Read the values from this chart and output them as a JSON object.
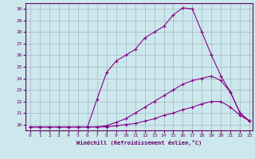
{
  "xlabel": "Windchill (Refroidissement éolien,°C)",
  "background_color": "#cce8ec",
  "line_color": "#880088",
  "grid_color": "#99aabb",
  "xlim": [
    -0.5,
    23.3
  ],
  "ylim": [
    19.5,
    30.5
  ],
  "yticks": [
    20,
    21,
    22,
    23,
    24,
    25,
    26,
    27,
    28,
    29,
    30
  ],
  "xticks": [
    0,
    1,
    2,
    3,
    4,
    5,
    6,
    7,
    8,
    9,
    10,
    11,
    12,
    13,
    14,
    15,
    16,
    17,
    18,
    19,
    20,
    21,
    22,
    23
  ],
  "line1_x": [
    0,
    1,
    2,
    3,
    4,
    5,
    6,
    7,
    8,
    9,
    10,
    11,
    12,
    13,
    14,
    15,
    16,
    17,
    18,
    19,
    20,
    21,
    22,
    23
  ],
  "line1_y": [
    19.8,
    19.8,
    19.8,
    19.8,
    19.8,
    19.8,
    19.8,
    19.8,
    19.8,
    19.9,
    20.0,
    20.1,
    20.3,
    20.5,
    20.8,
    21.0,
    21.3,
    21.5,
    21.8,
    22.0,
    22.0,
    21.5,
    20.8,
    20.3
  ],
  "line2_x": [
    0,
    1,
    2,
    3,
    4,
    5,
    6,
    7,
    8,
    9,
    10,
    11,
    12,
    13,
    14,
    15,
    16,
    17,
    18,
    19,
    20,
    21,
    22,
    23
  ],
  "line2_y": [
    19.8,
    19.8,
    19.8,
    19.8,
    19.8,
    19.8,
    19.8,
    19.8,
    19.9,
    20.2,
    20.5,
    21.0,
    21.5,
    22.0,
    22.5,
    23.0,
    23.5,
    23.8,
    24.0,
    24.2,
    23.8,
    22.8,
    21.0,
    20.3
  ],
  "line3_x": [
    0,
    1,
    2,
    3,
    4,
    5,
    6,
    7,
    8,
    9,
    10,
    11,
    12,
    13,
    14,
    15,
    16,
    17,
    18,
    19,
    20,
    21,
    22,
    23
  ],
  "line3_y": [
    19.8,
    19.8,
    19.8,
    19.8,
    19.8,
    19.8,
    19.8,
    22.2,
    24.5,
    25.5,
    26.0,
    26.5,
    27.5,
    28.0,
    28.5,
    29.5,
    30.1,
    30.0,
    28.0,
    26.0,
    24.2,
    22.8,
    21.0,
    20.3
  ]
}
